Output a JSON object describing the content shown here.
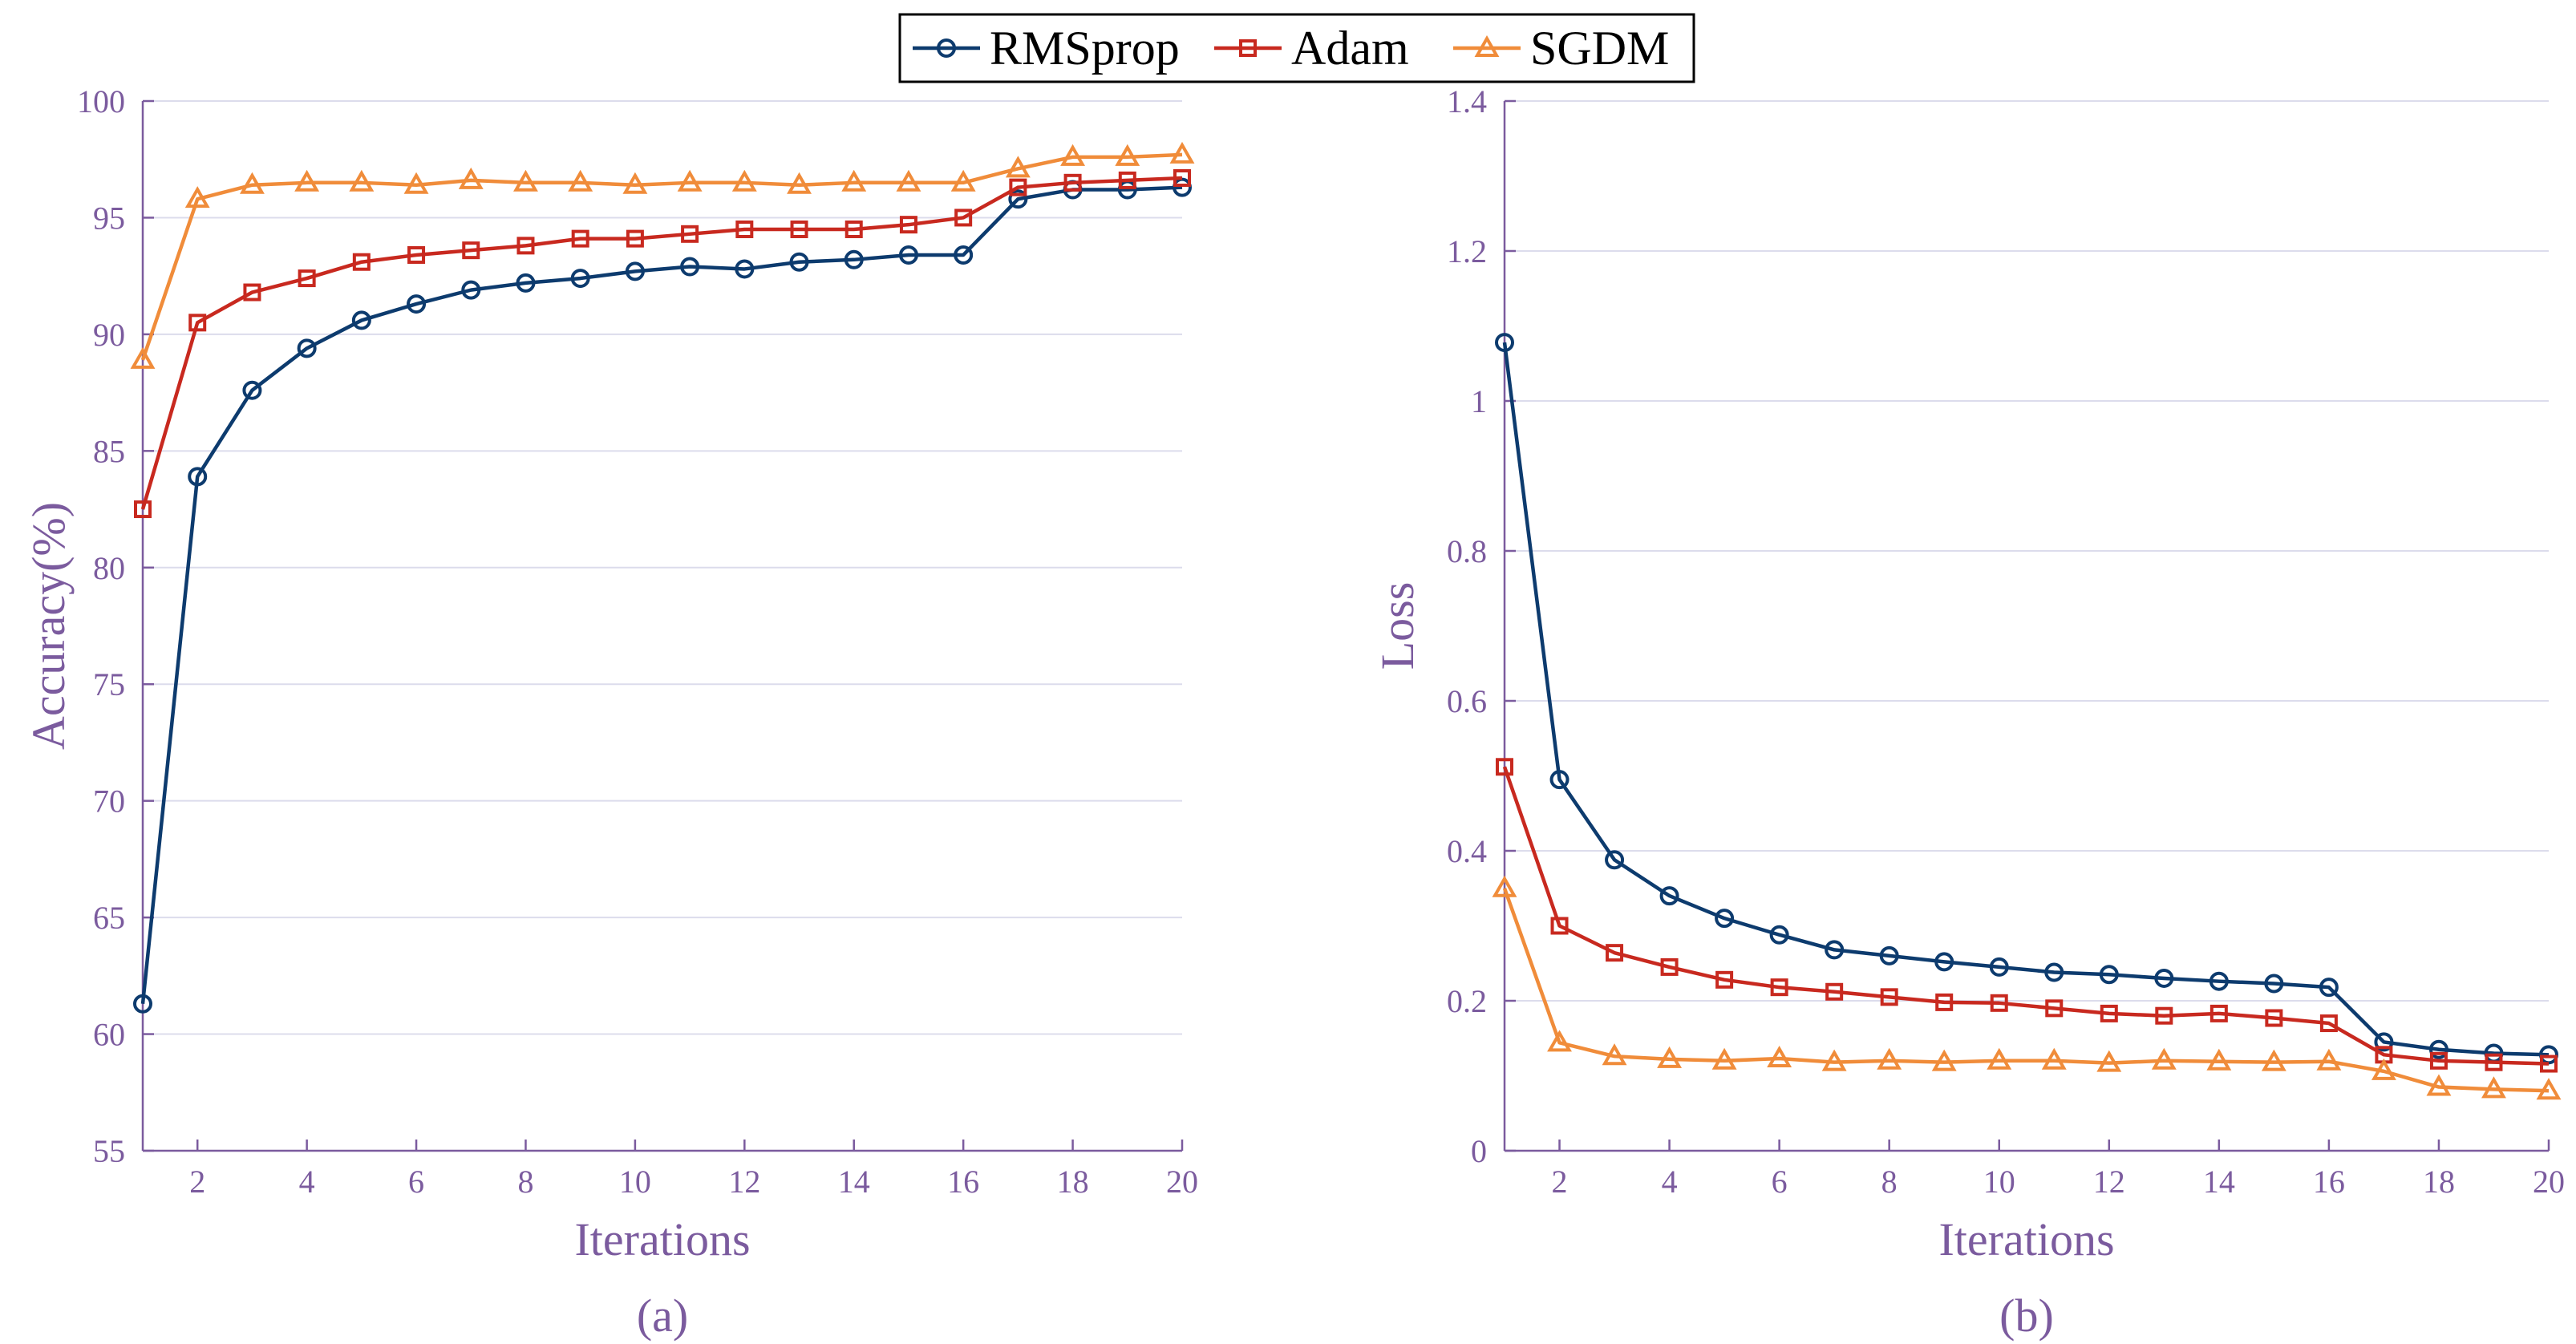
{
  "legend": {
    "entries": [
      {
        "name": "RMSprop",
        "color": "#0d3b6e",
        "marker": "circle"
      },
      {
        "name": "Adam",
        "color": "#c8291f",
        "marker": "square"
      },
      {
        "name": "SGDM",
        "color": "#f08c3a",
        "marker": "triangle"
      }
    ]
  },
  "chart_data": [
    {
      "type": "line",
      "panel_label": "(a)",
      "xlabel": "Iterations",
      "ylabel": "Accuracy(%)",
      "xlim": [
        1,
        20
      ],
      "ylim": [
        55,
        100
      ],
      "xticks": [
        2,
        4,
        6,
        8,
        10,
        12,
        14,
        16,
        18,
        20
      ],
      "yticks": [
        55,
        60,
        65,
        70,
        75,
        80,
        85,
        90,
        95,
        100
      ],
      "ytick_labels": [
        "55",
        "60",
        "65",
        "70",
        "75",
        "80",
        "85",
        "90",
        "95",
        "100"
      ],
      "grid": true,
      "x": [
        1,
        2,
        3,
        4,
        5,
        6,
        7,
        8,
        9,
        10,
        11,
        12,
        13,
        14,
        15,
        16,
        17,
        18,
        19,
        20
      ],
      "series": [
        {
          "name": "RMSprop",
          "values": [
            61.3,
            83.9,
            87.6,
            89.4,
            90.6,
            91.3,
            91.9,
            92.2,
            92.4,
            92.7,
            92.9,
            92.8,
            93.1,
            93.2,
            93.4,
            93.4,
            95.8,
            96.2,
            96.2,
            96.3
          ]
        },
        {
          "name": "Adam",
          "values": [
            82.5,
            90.5,
            91.8,
            92.4,
            93.1,
            93.4,
            93.6,
            93.8,
            94.1,
            94.1,
            94.3,
            94.5,
            94.5,
            94.5,
            94.7,
            95.0,
            96.3,
            96.5,
            96.6,
            96.7
          ]
        },
        {
          "name": "SGDM",
          "values": [
            88.9,
            95.8,
            96.4,
            96.5,
            96.5,
            96.4,
            96.6,
            96.5,
            96.5,
            96.4,
            96.5,
            96.5,
            96.4,
            96.5,
            96.5,
            96.5,
            97.1,
            97.6,
            97.6,
            97.7
          ]
        }
      ]
    },
    {
      "type": "line",
      "panel_label": "(b)",
      "xlabel": "Iterations",
      "ylabel": "Loss",
      "xlim": [
        1,
        20
      ],
      "ylim": [
        0,
        1.4
      ],
      "xticks": [
        2,
        4,
        6,
        8,
        10,
        12,
        14,
        16,
        18,
        20
      ],
      "yticks": [
        0,
        0.2,
        0.4,
        0.6,
        0.8,
        1.0,
        1.2,
        1.4
      ],
      "ytick_labels": [
        "0",
        "0.2",
        "0.4",
        "0.6",
        "0.8",
        "1",
        "1.2",
        "1.4"
      ],
      "grid": true,
      "x": [
        1,
        2,
        3,
        4,
        5,
        6,
        7,
        8,
        9,
        10,
        11,
        12,
        13,
        14,
        15,
        16,
        17,
        18,
        19,
        20
      ],
      "series": [
        {
          "name": "RMSprop",
          "values": [
            1.078,
            0.495,
            0.388,
            0.34,
            0.31,
            0.288,
            0.268,
            0.26,
            0.252,
            0.245,
            0.238,
            0.235,
            0.23,
            0.226,
            0.223,
            0.218,
            0.145,
            0.135,
            0.13,
            0.128
          ]
        },
        {
          "name": "Adam",
          "values": [
            0.512,
            0.3,
            0.264,
            0.245,
            0.228,
            0.218,
            0.212,
            0.205,
            0.198,
            0.197,
            0.19,
            0.183,
            0.18,
            0.183,
            0.177,
            0.17,
            0.128,
            0.12,
            0.118,
            0.116
          ]
        },
        {
          "name": "SGDM",
          "values": [
            0.35,
            0.144,
            0.126,
            0.122,
            0.12,
            0.123,
            0.118,
            0.12,
            0.118,
            0.12,
            0.12,
            0.117,
            0.12,
            0.119,
            0.118,
            0.119,
            0.106,
            0.085,
            0.082,
            0.08
          ]
        }
      ]
    }
  ]
}
